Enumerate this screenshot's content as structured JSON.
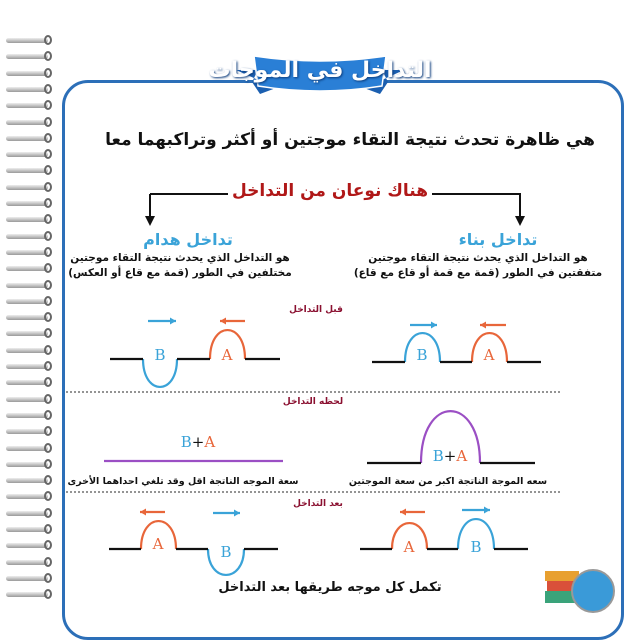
{
  "title": "التداخل في الموجات",
  "definition": "هي ظاهرة تحدث نتيجة التقاء موجتين أو أكثر وتراكبهما معا",
  "types_heading": "هناك نوعان من التداخل",
  "constructive": {
    "title": "تداخل بناء",
    "desc_line1": "هو التداخل الذي يحدث نتيجة التقاء موجتين",
    "desc_line2": "متفقتين في الطور (قمة مع قمة أو قاع مع قاع)",
    "during_caption": "سعه الموجة الناتجة اكبر من سعة الموجتين"
  },
  "destructive": {
    "title": "تداخل هدام",
    "desc_line1": "هو التداخل الذي يحدث نتيجة التقاء موجتين",
    "desc_line2": "مختلفين في الطور (قمة مع قاع أو العكس)",
    "during_caption": "سعة الموجه الناتجة اقل وقد تلغي احداهما الأخرى"
  },
  "stages": {
    "before": "قبل التداخل",
    "during": "لحظه التداخل",
    "after": "بعد التداخل"
  },
  "wave_labels": {
    "a": "A",
    "b": "B",
    "plus": "+"
  },
  "footer": "تكمل كل موجه طريقها بعد التداخل",
  "colors": {
    "wave_a": "#e8663a",
    "wave_b": "#3aa3d8",
    "sum": "#9b4fc4",
    "frame": "#2c6fb8",
    "heading": "#b01818"
  }
}
